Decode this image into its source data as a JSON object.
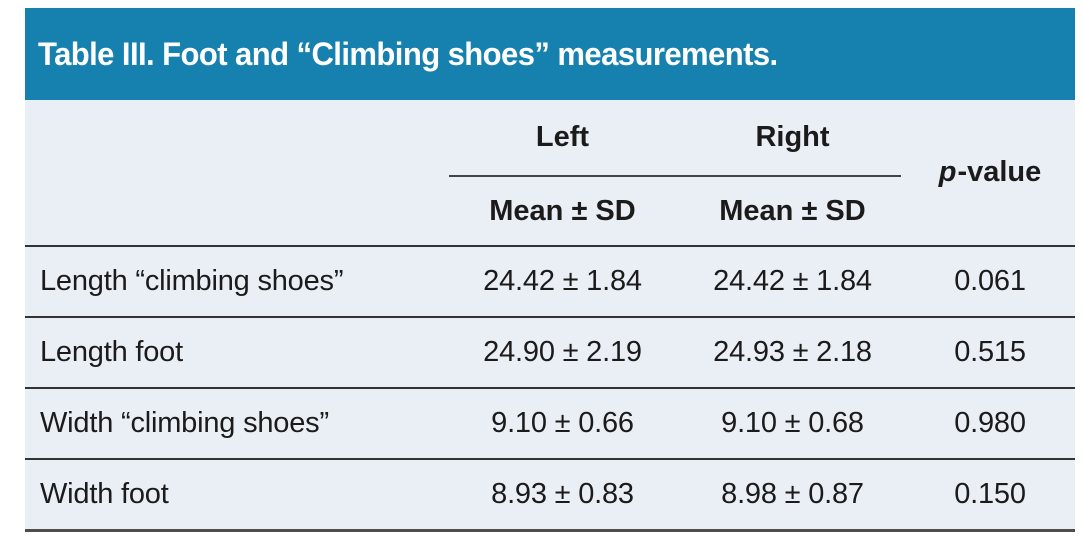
{
  "title": "Table III. Foot and “Climbing shoes” measurements.",
  "colors": {
    "header_bg": "#1681ae",
    "body_bg": "#eaeef5",
    "title_text": "#ffffff",
    "text": "#1b1b1b",
    "divider_line": "#333333"
  },
  "header": {
    "group_left": "Left",
    "group_right": "Right",
    "sub_left": "Mean ± SD",
    "sub_right": "Mean ± SD",
    "p_italic": "p",
    "p_rest": "-value"
  },
  "rows": [
    {
      "label": "Length “climbing shoes”",
      "left": "24.42 ± 1.84",
      "right": "24.42 ± 1.84",
      "p": "0.061"
    },
    {
      "label": "Length foot",
      "left": "24.90 ± 2.19",
      "right": "24.93 ± 2.18",
      "p": "0.515"
    },
    {
      "label": "Width “climbing shoes”",
      "left": "9.10 ± 0.66",
      "right": "9.10 ± 0.68",
      "p": "0.980"
    },
    {
      "label": "Width foot",
      "left": "8.93 ± 0.83",
      "right": "8.98 ± 0.87",
      "p": "0.150"
    }
  ]
}
